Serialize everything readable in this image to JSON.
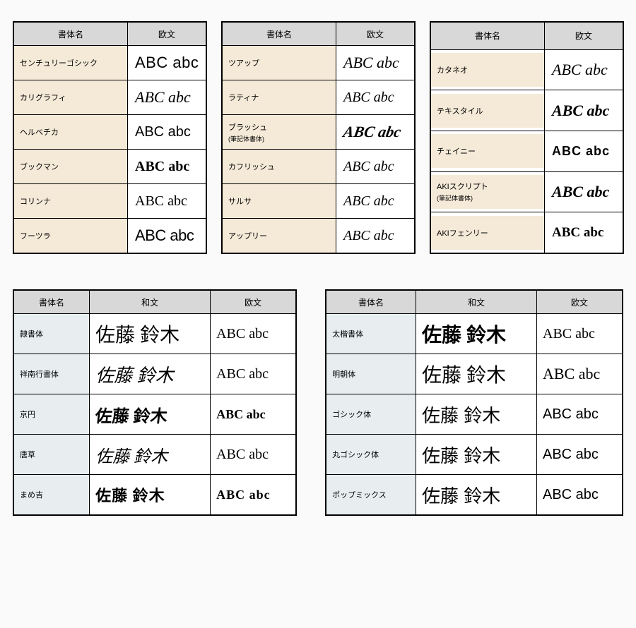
{
  "columns": {
    "name": "書体名",
    "ou": "欧文",
    "wa": "和文"
  },
  "sample_latin": "ABC abc",
  "sample_kanji": "佐藤 鈴木",
  "colors": {
    "header_bg": "#d8d8d8",
    "cream_tint": "#f5ead8",
    "blue_tint": "#e8eef0",
    "border": "#000000",
    "bg": "#fafafa"
  },
  "top_tables": [
    {
      "rows": [
        {
          "name": "センチュリーゴシック",
          "style": "font-family:'Century Gothic',sans-serif;font-size:22px;letter-spacing:0.5px;"
        },
        {
          "name": "カリグラフィ",
          "style": "font-style:italic;font-family:'Brush Script MT',cursive;font-size:22px;"
        },
        {
          "name": "ヘルベチカ",
          "style": "font-family:Helvetica,Arial,sans-serif;font-size:20px;"
        },
        {
          "name": "ブックマン",
          "style": "font-family:'Bookman Old Style',Georgia,serif;font-weight:600;font-size:20px;"
        },
        {
          "name": "コリンナ",
          "style": "font-family:Georgia,serif;font-size:20px;"
        },
        {
          "name": "フーツラ",
          "style": "font-family:Futura,'Century Gothic',sans-serif;font-size:22px;font-stretch:condensed;letter-spacing:-0.5px;"
        }
      ]
    },
    {
      "rows": [
        {
          "name": "ツアップ",
          "style": "font-family:'Monotype Corsiva','Brush Script MT',cursive;font-style:italic;font-size:22px;"
        },
        {
          "name": "ラティナ",
          "style": "font-style:italic;font-family:Georgia,serif;font-size:20px;"
        },
        {
          "name": "ブラッシュ",
          "sub": "(筆記体書体)",
          "style": "font-family:'Brush Script MT',cursive;font-style:italic;font-weight:bold;font-size:22px;transform:skewX(-10deg);"
        },
        {
          "name": "カフリッシュ",
          "style": "font-style:italic;font-family:'Segoe Script',cursive;font-size:20px;"
        },
        {
          "name": "サルサ",
          "style": "font-style:italic;font-family:cursive;font-size:20px;"
        },
        {
          "name": "アップリー",
          "style": "font-style:italic;font-family:'Monotype Corsiva',cursive;font-size:20px;"
        }
      ]
    },
    {
      "rows": [
        {
          "name": "カタネオ",
          "style": "font-style:italic;font-family:Georgia,serif;font-size:22px;"
        },
        {
          "name": "テキスタイル",
          "style": "font-weight:900;font-style:italic;font-family:Georgia,serif;font-size:22px;"
        },
        {
          "name": "チェイニー",
          "style": "font-weight:900;font-family:Impact,sans-serif;letter-spacing:1px;font-size:18px;"
        },
        {
          "name": "AKIスクリプト",
          "sub": "(筆記体書体)",
          "style": "font-family:'Brush Script MT',cursive;font-style:italic;font-weight:bold;font-size:22px;"
        },
        {
          "name": "AKIフェンリー",
          "style": "font-family:'Comic Sans MS',cursive;font-weight:bold;font-size:19px;"
        }
      ]
    }
  ],
  "bottom_tables": [
    {
      "rows": [
        {
          "name": "隷書体",
          "wa_style": "font-family:serif;font-size:28px;",
          "ou_style": "font-family:Georgia,serif;font-size:20px;"
        },
        {
          "name": "祥南行書体",
          "wa_style": "font-family:cursive,serif;font-style:italic;font-size:26px;",
          "ou_style": "font-family:Georgia,serif;font-size:20px;"
        },
        {
          "name": "京円",
          "wa_style": "font-family:cursive,serif;font-weight:bold;font-size:24px;transform:skewX(-6deg);",
          "ou_style": "font-family:'Comic Sans MS',cursive;font-weight:bold;font-size:18px;"
        },
        {
          "name": "唐草",
          "wa_style": "font-family:cursive,serif;font-style:italic;font-size:24px;",
          "ou_style": "font-family:Georgia,serif;font-size:20px;"
        },
        {
          "name": "まめ吉",
          "wa_style": "font-family:cursive;font-weight:bold;font-size:22px;letter-spacing:1px;",
          "ou_style": "font-family:'Brush Script MT',cursive;font-weight:bold;font-size:18px;letter-spacing:1px;"
        }
      ]
    },
    {
      "rows": [
        {
          "name": "太楷書体",
          "wa_style": "font-family:serif;font-weight:bold;font-size:28px;",
          "ou_style": "font-family:Georgia,serif;font-size:20px;"
        },
        {
          "name": "明朝体",
          "wa_style": "font-family:'MS Mincho',serif;font-size:28px;",
          "ou_style": "font-family:'Times New Roman',serif;font-size:22px;"
        },
        {
          "name": "ゴシック体",
          "wa_style": "font-family:'MS Gothic',sans-serif;font-size:26px;",
          "ou_style": "font-family:Arial,sans-serif;font-size:20px;"
        },
        {
          "name": "丸ゴシック体",
          "wa_style": "font-family:'Arial Rounded MT Bold',sans-serif;font-size:26px;",
          "ou_style": "font-family:'Arial Rounded MT Bold',sans-serif;font-size:20px;"
        },
        {
          "name": "ポップミックス",
          "wa_style": "font-family:sans-serif;font-size:26px;",
          "ou_style": "font-family:'Century Gothic',sans-serif;font-size:20px;"
        }
      ]
    }
  ]
}
